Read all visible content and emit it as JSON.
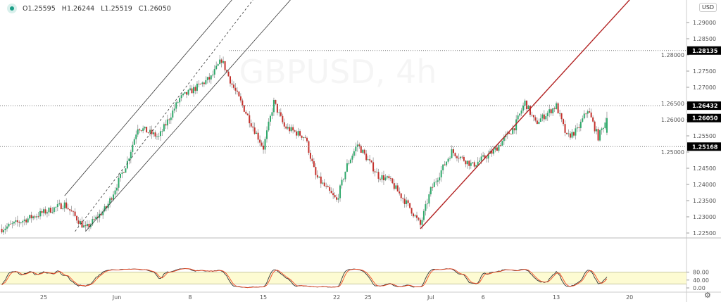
{
  "symbol_watermark": "GBPUSD, 4h",
  "legend": {
    "open": "O1.25595",
    "high": "H1.26244",
    "low": "L1.25519",
    "close": "C1.26050",
    "status_color": "#1a9e86"
  },
  "currency_button": "USD",
  "settings_icon": "gear-icon",
  "colors": {
    "up": "#2ea86a",
    "down": "#c4312c",
    "trendline": "#b22222",
    "stoch_k": "#333333",
    "stoch_d": "#f04a24",
    "band_fill": "#fdfbd2"
  },
  "price_axis": {
    "ticks": [
      "1.29000",
      "1.28500",
      "1.28000",
      "1.27500",
      "1.27000",
      "1.26500",
      "1.26000",
      "1.25500",
      "1.25000",
      "1.24500",
      "1.24000",
      "1.23500",
      "1.23000",
      "1.22500"
    ]
  },
  "price_labels": [
    {
      "text": "1.28135",
      "value": 1.28135,
      "line": true
    },
    {
      "text": "1.26432",
      "value": 1.26432,
      "line": true
    },
    {
      "text": "1.26050",
      "value": 1.2605,
      "line": false
    },
    {
      "text": "1.25168",
      "value": 1.25168,
      "line": true
    }
  ],
  "oscillator_axis": {
    "ticks": [
      "80.00",
      "40.00",
      "0.00"
    ],
    "band": [
      20,
      80
    ]
  },
  "time_axis": [
    {
      "label": "25",
      "date": "2020-05-25"
    },
    {
      "label": "Jun",
      "date": "2020-06-01"
    },
    {
      "label": "8",
      "date": "2020-06-08"
    },
    {
      "label": "15",
      "date": "2020-06-15"
    },
    {
      "label": "22",
      "date": "2020-06-22"
    },
    {
      "label": "25",
      "date": "2020-06-25"
    },
    {
      "label": "Jul",
      "date": "2020-07-01"
    },
    {
      "label": "6",
      "date": "2020-07-06"
    },
    {
      "label": "13",
      "date": "2020-07-13"
    },
    {
      "label": "20",
      "date": "2020-07-20"
    }
  ],
  "chart_data": {
    "type": "candlestick",
    "interval": "4h",
    "approx_path": [
      [
        "2020-05-21",
        1.2263
      ],
      [
        "2020-05-27",
        1.2339
      ],
      [
        "2020-05-29",
        1.2263
      ],
      [
        "2020-05-31",
        1.2328
      ],
      [
        "2020-06-02",
        1.247
      ],
      [
        "2020-06-03",
        1.2578
      ],
      [
        "2020-06-05",
        1.2546
      ],
      [
        "2020-06-07",
        1.2665
      ],
      [
        "2020-06-10",
        1.273
      ],
      [
        "2020-06-11",
        1.2785
      ],
      [
        "2020-06-12",
        1.2709
      ],
      [
        "2020-06-14",
        1.2578
      ],
      [
        "2020-06-15",
        1.2513
      ],
      [
        "2020-06-16",
        1.2654
      ],
      [
        "2020-06-17",
        1.2578
      ],
      [
        "2020-06-19",
        1.2546
      ],
      [
        "2020-06-20",
        1.2426
      ],
      [
        "2020-06-22",
        1.235
      ],
      [
        "2020-06-23",
        1.2459
      ],
      [
        "2020-06-24",
        1.2524
      ],
      [
        "2020-06-26",
        1.2426
      ],
      [
        "2020-06-27",
        1.2415
      ],
      [
        "2020-06-29",
        1.2328
      ],
      [
        "2020-06-30",
        1.2274
      ],
      [
        "2020-07-01",
        1.2383
      ],
      [
        "2020-07-03",
        1.2502
      ],
      [
        "2020-07-05",
        1.2459
      ],
      [
        "2020-07-07",
        1.2502
      ],
      [
        "2020-07-09",
        1.2578
      ],
      [
        "2020-07-10",
        1.2654
      ],
      [
        "2020-07-11",
        1.2589
      ],
      [
        "2020-07-13",
        1.2643
      ],
      [
        "2020-07-14",
        1.2546
      ],
      [
        "2020-07-15",
        1.2567
      ],
      [
        "2020-07-16",
        1.2632
      ],
      [
        "2020-07-17",
        1.2546
      ],
      [
        "2020-07-17T20:00",
        1.2605
      ]
    ],
    "drawings": {
      "trendline": [
        [
          "2020-06-30",
          1.2263
        ],
        [
          "2020-07-20",
          1.297
        ]
      ],
      "channel_upper": [
        [
          "2020-05-27",
          1.2365
        ],
        [
          "2020-06-12",
          1.297
        ]
      ],
      "channel_middle": [
        [
          "2020-05-28",
          1.2255
        ],
        [
          "2020-06-14",
          1.297
        ]
      ],
      "channel_lower": [
        [
          "2020-05-29",
          1.2255
        ],
        [
          "2020-06-18",
          1.2985
        ]
      ]
    },
    "ylim": [
      1.2235,
      1.2925
    ],
    "oscillator": {
      "type": "stochastic",
      "ylim": [
        0,
        100
      ]
    }
  }
}
